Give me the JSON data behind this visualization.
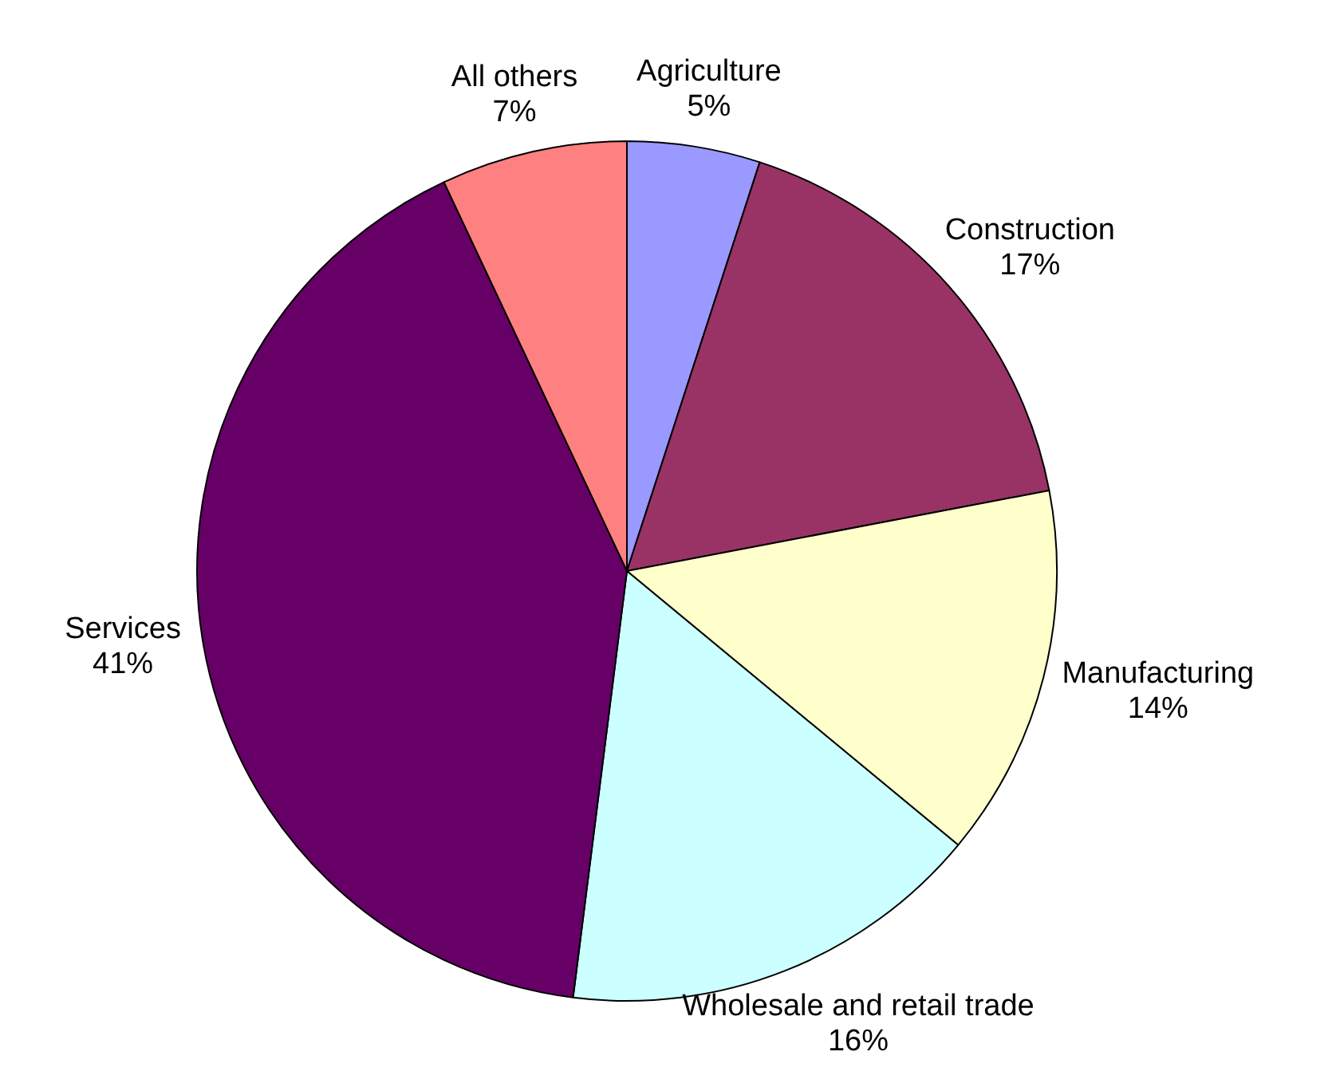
{
  "chart_data": {
    "type": "pie",
    "categories": [
      "Agriculture",
      "Construction",
      "Manufacturing",
      "Wholesale and retail trade",
      "Services",
      "All others"
    ],
    "values": [
      5,
      17,
      14,
      16,
      41,
      7
    ],
    "colors": [
      "#9999ff",
      "#993366",
      "#ffffcc",
      "#ccffff",
      "#660066",
      "#ff8080"
    ],
    "value_labels": [
      "5%",
      "17%",
      "14%",
      "16%",
      "41%",
      "7%"
    ],
    "legend": false
  }
}
